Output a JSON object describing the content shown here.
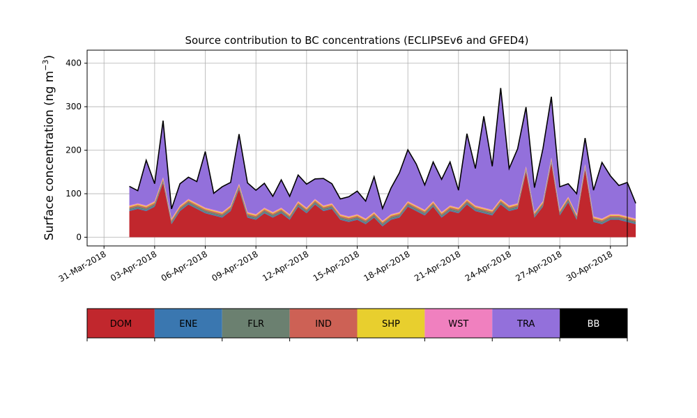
{
  "chart_data": {
    "type": "area",
    "title": "Source contribution to BC concentrations (ECLIPSEv6 and GFED4)",
    "ylabel_main": "Surface concentration (ng m",
    "ylabel_sup": "−3",
    "ylabel_close": ")",
    "xlabel": "",
    "x_range": [
      "2018-03-30",
      "2018-05-01"
    ],
    "ylim": [
      -20,
      430
    ],
    "grid": true,
    "y_ticks": [
      0,
      100,
      200,
      300,
      400
    ],
    "x_ticks": [
      {
        "date": "2018-03-31",
        "label": "31-Mar-2018"
      },
      {
        "date": "2018-04-03",
        "label": "03-Apr-2018"
      },
      {
        "date": "2018-04-06",
        "label": "06-Apr-2018"
      },
      {
        "date": "2018-04-09",
        "label": "09-Apr-2018"
      },
      {
        "date": "2018-04-12",
        "label": "12-Apr-2018"
      },
      {
        "date": "2018-04-15",
        "label": "15-Apr-2018"
      },
      {
        "date": "2018-04-18",
        "label": "18-Apr-2018"
      },
      {
        "date": "2018-04-21",
        "label": "21-Apr-2018"
      },
      {
        "date": "2018-04-24",
        "label": "24-Apr-2018"
      },
      {
        "date": "2018-04-27",
        "label": "27-Apr-2018"
      },
      {
        "date": "2018-04-30",
        "label": "30-Apr-2018"
      }
    ],
    "x": [
      "2018-04-01 12:00",
      "2018-04-02 00:00",
      "2018-04-02 12:00",
      "2018-04-03 00:00",
      "2018-04-03 12:00",
      "2018-04-04 00:00",
      "2018-04-04 12:00",
      "2018-04-05 00:00",
      "2018-04-05 12:00",
      "2018-04-06 00:00",
      "2018-04-06 12:00",
      "2018-04-07 00:00",
      "2018-04-07 12:00",
      "2018-04-08 00:00",
      "2018-04-08 12:00",
      "2018-04-09 00:00",
      "2018-04-09 12:00",
      "2018-04-10 00:00",
      "2018-04-10 12:00",
      "2018-04-11 00:00",
      "2018-04-11 12:00",
      "2018-04-12 00:00",
      "2018-04-12 12:00",
      "2018-04-13 00:00",
      "2018-04-13 12:00",
      "2018-04-14 00:00",
      "2018-04-14 12:00",
      "2018-04-15 00:00",
      "2018-04-15 12:00",
      "2018-04-16 00:00",
      "2018-04-16 12:00",
      "2018-04-17 00:00",
      "2018-04-17 12:00",
      "2018-04-18 00:00",
      "2018-04-18 12:00",
      "2018-04-19 00:00",
      "2018-04-19 12:00",
      "2018-04-20 00:00",
      "2018-04-20 12:00",
      "2018-04-21 00:00",
      "2018-04-21 12:00",
      "2018-04-22 00:00",
      "2018-04-22 12:00",
      "2018-04-23 00:00",
      "2018-04-23 12:00",
      "2018-04-24 00:00",
      "2018-04-24 12:00",
      "2018-04-25 00:00",
      "2018-04-25 12:00",
      "2018-04-26 00:00",
      "2018-04-26 12:00",
      "2018-04-27 00:00",
      "2018-04-27 12:00",
      "2018-04-28 00:00",
      "2018-04-28 12:00",
      "2018-04-29 00:00",
      "2018-04-29 12:00",
      "2018-04-30 00:00",
      "2018-04-30 12:00",
      "2018-05-01 00:00",
      "2018-05-01 12:00"
    ],
    "series": [
      {
        "name": "DOM",
        "color": "#c1272d",
        "values": [
          60,
          65,
          60,
          70,
          125,
          30,
          60,
          75,
          65,
          55,
          50,
          45,
          60,
          110,
          45,
          40,
          55,
          45,
          55,
          40,
          70,
          55,
          75,
          60,
          65,
          40,
          35,
          40,
          30,
          45,
          25,
          40,
          45,
          70,
          60,
          50,
          70,
          45,
          60,
          55,
          75,
          60,
          55,
          50,
          75,
          60,
          65,
          150,
          45,
          70,
          170,
          50,
          80,
          40,
          155,
          35,
          30,
          40,
          40,
          35,
          30
        ]
      },
      {
        "name": "ENE",
        "color": "#3a77b0",
        "values": [
          2,
          2,
          2,
          2,
          2,
          2,
          2,
          2,
          2,
          2,
          2,
          2,
          2,
          2,
          2,
          2,
          2,
          2,
          2,
          2,
          2,
          2,
          2,
          2,
          2,
          2,
          2,
          2,
          2,
          2,
          2,
          2,
          2,
          2,
          2,
          2,
          2,
          2,
          2,
          2,
          2,
          2,
          2,
          2,
          2,
          2,
          2,
          2,
          2,
          2,
          2,
          2,
          2,
          2,
          2,
          2,
          2,
          2,
          2,
          2,
          2
        ]
      },
      {
        "name": "FLR",
        "color": "#6b8070",
        "values": [
          4,
          4,
          4,
          4,
          4,
          4,
          4,
          4,
          4,
          4,
          4,
          4,
          4,
          4,
          4,
          4,
          4,
          4,
          4,
          4,
          4,
          4,
          4,
          4,
          4,
          4,
          4,
          4,
          4,
          4,
          4,
          4,
          4,
          4,
          4,
          4,
          4,
          4,
          4,
          4,
          4,
          4,
          4,
          4,
          4,
          4,
          4,
          4,
          4,
          4,
          4,
          4,
          4,
          4,
          4,
          4,
          4,
          4,
          4,
          4,
          4
        ]
      },
      {
        "name": "IND",
        "color": "#cd6155",
        "values": [
          3,
          3,
          3,
          3,
          3,
          3,
          3,
          3,
          3,
          3,
          3,
          3,
          3,
          3,
          3,
          3,
          3,
          3,
          3,
          3,
          3,
          3,
          3,
          3,
          3,
          3,
          3,
          3,
          3,
          3,
          3,
          3,
          3,
          3,
          3,
          3,
          3,
          3,
          3,
          3,
          3,
          3,
          3,
          3,
          3,
          3,
          3,
          3,
          3,
          3,
          3,
          3,
          3,
          3,
          3,
          3,
          3,
          3,
          3,
          3,
          3
        ]
      },
      {
        "name": "SHP",
        "color": "#e8cf2e",
        "values": [
          2,
          2,
          2,
          2,
          2,
          2,
          2,
          2,
          2,
          2,
          2,
          2,
          2,
          2,
          2,
          2,
          2,
          2,
          2,
          2,
          2,
          2,
          2,
          2,
          2,
          2,
          2,
          2,
          2,
          2,
          2,
          2,
          2,
          2,
          2,
          2,
          2,
          2,
          2,
          2,
          2,
          2,
          2,
          2,
          2,
          2,
          2,
          2,
          2,
          2,
          2,
          2,
          2,
          2,
          2,
          2,
          2,
          2,
          2,
          2,
          2
        ]
      },
      {
        "name": "WST",
        "color": "#f080bf",
        "values": [
          2,
          2,
          2,
          2,
          2,
          2,
          2,
          2,
          2,
          2,
          2,
          2,
          2,
          2,
          2,
          2,
          2,
          2,
          2,
          2,
          2,
          2,
          2,
          2,
          2,
          2,
          2,
          2,
          2,
          2,
          2,
          2,
          2,
          2,
          2,
          2,
          2,
          2,
          2,
          2,
          2,
          2,
          2,
          2,
          2,
          2,
          2,
          2,
          2,
          2,
          2,
          2,
          2,
          2,
          2,
          2,
          2,
          2,
          2,
          2,
          2
        ]
      },
      {
        "name": "TRA",
        "color": "#9370db",
        "values": [
          44,
          29,
          104,
          40,
          130,
          22,
          50,
          50,
          50,
          129,
          38,
          58,
          53,
          114,
          67,
          55,
          56,
          36,
          64,
          41,
          60,
          54,
          46,
          62,
          45,
          35,
          45,
          53,
          40,
          81,
          28,
          60,
          90,
          118,
          95,
          57,
          90,
          75,
          100,
          40,
          150,
          85,
          210,
          100,
          255,
          85,
          125,
          136,
          56,
          120,
          140,
          53,
          30,
          47,
          60,
          60,
          129,
          88,
          66,
          78,
          35
        ]
      },
      {
        "name": "BB",
        "color": "#000000",
        "values": [
          0,
          0,
          0,
          0,
          0,
          0,
          0,
          0,
          0,
          0,
          0,
          0,
          0,
          0,
          0,
          0,
          0,
          0,
          0,
          0,
          0,
          0,
          0,
          0,
          0,
          0,
          0,
          0,
          0,
          0,
          0,
          0,
          0,
          0,
          0,
          0,
          0,
          0,
          0,
          0,
          0,
          0,
          0,
          0,
          0,
          0,
          0,
          0,
          0,
          0,
          0,
          0,
          0,
          0,
          0,
          0,
          0,
          0,
          0,
          0,
          0
        ]
      }
    ],
    "legend_placement": "bottom"
  }
}
